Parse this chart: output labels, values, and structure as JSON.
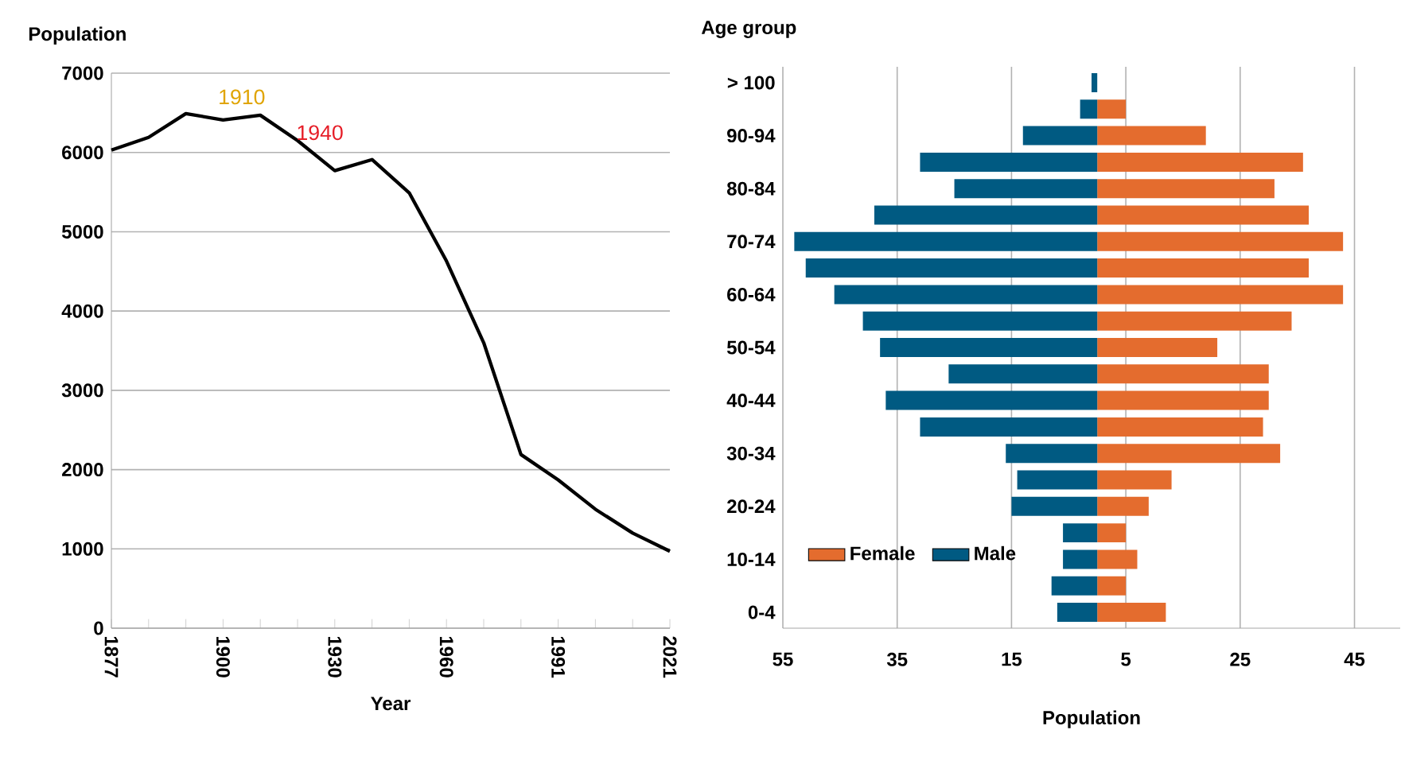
{
  "chart_data": [
    {
      "type": "line",
      "xlabel": "Year",
      "ylabel": "Population",
      "categories": [
        "1877",
        null,
        null,
        "1900",
        null,
        null,
        "1930",
        null,
        null,
        "1960",
        null,
        null,
        "1991",
        null,
        null,
        "2021"
      ],
      "series": [
        {
          "color": "#000000",
          "values": [
            6030,
            6190,
            6490,
            6410,
            6470,
            6150,
            5770,
            5910,
            5490,
            4630,
            3600,
            2190,
            1870,
            1500,
            1200,
            970
          ]
        }
      ],
      "ylim": [
        0,
        7000
      ],
      "yticks": [
        0,
        1000,
        2000,
        3000,
        4000,
        5000,
        6000,
        7000
      ],
      "grid": "y",
      "marker": "none",
      "line_style": "solid",
      "annotations": [
        "1910",
        "1940"
      ]
    },
    {
      "type": "bar",
      "orientation": "horizontal",
      "xlabel": "Population",
      "ylabel": "Age group",
      "categories": [
        "> 100",
        null,
        "90-94",
        null,
        "80-84",
        null,
        "70-74",
        null,
        "60-64",
        null,
        "50-54",
        null,
        "40-44",
        null,
        "30-34",
        null,
        "20-24",
        null,
        "10-14",
        null,
        "0-4"
      ],
      "series": [
        {
          "name": "Female",
          "color": "#e46c2e",
          "values": [
            0,
            5,
            19,
            36,
            31,
            37,
            43,
            37,
            43,
            34,
            21,
            30,
            30,
            29,
            32,
            13,
            9,
            5,
            7,
            5,
            12
          ]
        },
        {
          "name": "Male",
          "color": "#005a82",
          "values": [
            -1,
            -3,
            -13,
            -31,
            -25,
            -39,
            -53,
            -51,
            -46,
            -41,
            -38,
            -26,
            -37,
            -31,
            -16,
            -14,
            -15,
            -6,
            -6,
            -8,
            -7
          ]
        }
      ],
      "xlim": [
        -55,
        53
      ],
      "xticks": [
        {
          "value": -55,
          "label": "55"
        },
        {
          "value": -35,
          "label": "35"
        },
        {
          "value": -15,
          "label": "15"
        },
        5,
        25,
        45
      ],
      "grid": "x",
      "legend": "bottom left",
      "stacked": true
    }
  ]
}
